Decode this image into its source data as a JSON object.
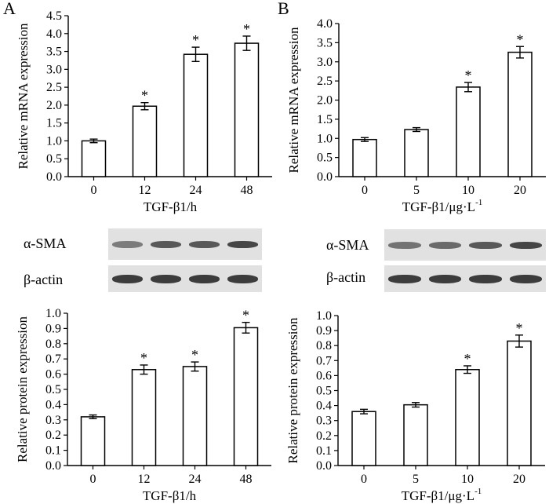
{
  "panels": {
    "a": "A",
    "b": "B"
  },
  "chart_data": [
    {
      "id": "mrna-time",
      "type": "bar",
      "title": "",
      "xlabel": "TGF-β1/h",
      "ylabel": "Relative mRNA expression",
      "categories": [
        "0",
        "12",
        "24",
        "48"
      ],
      "values": [
        1.0,
        1.97,
        3.42,
        3.73
      ],
      "errors": [
        0.05,
        0.1,
        0.2,
        0.2
      ],
      "significance": [
        "",
        "*",
        "*",
        "*"
      ],
      "ylim": [
        0,
        4.5
      ],
      "yticks": [
        "0.0",
        "0.5",
        "1.0",
        "1.5",
        "2.0",
        "2.5",
        "3.0",
        "3.5",
        "4.0",
        "4.5"
      ]
    },
    {
      "id": "mrna-dose",
      "type": "bar",
      "title": "",
      "xlabel": "TGF-β1/μg·L",
      "xlabel_sup": "-1",
      "ylabel": "Relative mRNA expression",
      "categories": [
        "0",
        "5",
        "10",
        "20"
      ],
      "values": [
        0.97,
        1.23,
        2.34,
        3.25
      ],
      "errors": [
        0.05,
        0.05,
        0.12,
        0.15
      ],
      "significance": [
        "",
        "",
        "*",
        "*"
      ],
      "ylim": [
        0,
        4.0
      ],
      "yticks": [
        "0.0",
        "0.5",
        "1.0",
        "1.5",
        "2.0",
        "2.5",
        "3.0",
        "3.5",
        "4.0"
      ]
    },
    {
      "id": "protein-time",
      "type": "bar",
      "title": "",
      "xlabel": "TGF-β1/h",
      "ylabel": "Relative protein expression",
      "categories": [
        "0",
        "12",
        "24",
        "48"
      ],
      "values": [
        0.32,
        0.63,
        0.65,
        0.905
      ],
      "errors": [
        0.012,
        0.03,
        0.03,
        0.035
      ],
      "significance": [
        "",
        "*",
        "*",
        "*"
      ],
      "ylim": [
        0,
        1.0
      ],
      "yticks": [
        "0.0",
        "0.1",
        "0.2",
        "0.3",
        "0.4",
        "0.5",
        "0.6",
        "0.7",
        "0.8",
        "0.9",
        "1.0"
      ]
    },
    {
      "id": "protein-dose",
      "type": "bar",
      "title": "",
      "xlabel": "TGF-β1/μg·L",
      "xlabel_sup": "-1",
      "ylabel": "Relative protein expression",
      "categories": [
        "0",
        "5",
        "10",
        "20"
      ],
      "values": [
        0.36,
        0.405,
        0.64,
        0.83
      ],
      "errors": [
        0.015,
        0.015,
        0.025,
        0.04
      ],
      "significance": [
        "",
        "",
        "*",
        "*"
      ],
      "ylim": [
        0,
        1.0
      ],
      "yticks": [
        "0.0",
        "0.1",
        "0.2",
        "0.3",
        "0.4",
        "0.5",
        "0.6",
        "0.7",
        "0.8",
        "0.9",
        "1.0"
      ]
    }
  ],
  "blots": {
    "a": {
      "sma_label": "α-SMA",
      "actin_label": "β-actin",
      "sma_intensity": [
        0.55,
        0.75,
        0.75,
        0.85
      ],
      "actin_intensity": [
        0.9,
        0.9,
        0.9,
        0.9
      ]
    },
    "b": {
      "sma_label": "α-SMA",
      "actin_label": "β-actin",
      "sma_intensity": [
        0.6,
        0.65,
        0.75,
        0.85
      ],
      "actin_intensity": [
        0.9,
        0.9,
        0.9,
        0.9
      ]
    }
  },
  "colors": {
    "bar_fill": "#ffffff",
    "axis": "#000000",
    "band": "#2a2a2a",
    "blot_bg": "#e1e1e1"
  }
}
